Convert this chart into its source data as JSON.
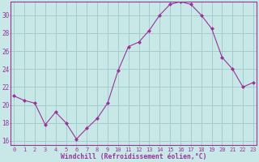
{
  "hours": [
    0,
    1,
    2,
    3,
    4,
    5,
    6,
    7,
    8,
    9,
    10,
    11,
    12,
    13,
    14,
    15,
    16,
    17,
    18,
    19,
    20,
    21,
    22,
    23
  ],
  "values": [
    21.0,
    20.5,
    20.2,
    17.8,
    19.2,
    18.0,
    16.2,
    17.4,
    18.5,
    20.2,
    23.8,
    26.5,
    27.0,
    28.3,
    30.0,
    31.2,
    31.5,
    31.2,
    30.0,
    28.5,
    25.3,
    24.0,
    22.0,
    22.5
  ],
  "line_color": "#993399",
  "marker": "D",
  "marker_size": 2,
  "bg_color": "#c8e8e8",
  "grid_color": "#a0c8c8",
  "xlabel": "Windchill (Refroidissement éolien,°C)",
  "xlabel_color": "#993399",
  "tick_color": "#993399",
  "ylim": [
    15.5,
    31.5
  ],
  "yticks": [
    16,
    18,
    20,
    22,
    24,
    26,
    28,
    30
  ],
  "xlim": [
    -0.3,
    23.3
  ],
  "figsize": [
    3.2,
    2.0
  ],
  "dpi": 100
}
